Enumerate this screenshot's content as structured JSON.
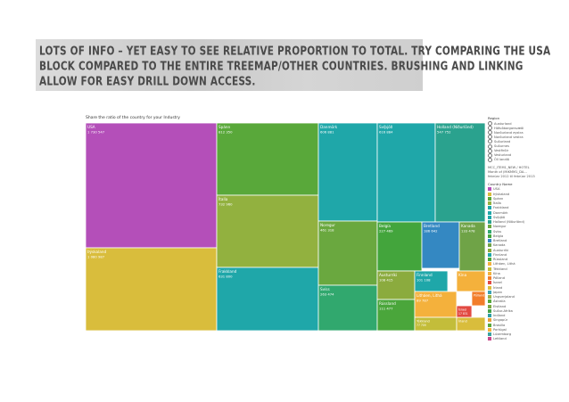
{
  "banner": {
    "lines": [
      "Lots of info – yet easy to see relative proportion to total.  Try comparing the USA",
      "block compared to the entire treemap/other countries. Brushing and linking",
      "allow for easy drill down access."
    ]
  },
  "chart_title": "Share the ratio of the country for your Industry",
  "chart_data": {
    "type": "treemap",
    "tiles": [
      {
        "name": "USA",
        "value": "1 730 547",
        "color": "#b44fb9"
      },
      {
        "name": "Þýskaland",
        "value": "1 080 987",
        "color": "#d9bd3c"
      },
      {
        "name": "Spánn",
        "value": "812 350",
        "color": "#59a83a"
      },
      {
        "name": "Ítalía",
        "value": "732 960",
        "color": "#92b13f"
      },
      {
        "name": "Frakkland",
        "value": "631 800",
        "color": "#1fa7a9"
      },
      {
        "name": "Danmörk",
        "value": "606 881",
        "color": "#1fa7a9"
      },
      {
        "name": "Noregur",
        "value": "461 318",
        "color": "#6aa83f"
      },
      {
        "name": "Svíss",
        "value": "263 474",
        "color": "#31a86e"
      },
      {
        "name": "Svíþjóð",
        "value": "616 884",
        "color": "#1fa7a9"
      },
      {
        "name": "Holland (Niðurlönd)",
        "value": "547 752",
        "color": "#2aa28e"
      },
      {
        "name": "Belgía",
        "value": "227 469",
        "color": "#43a53c"
      },
      {
        "name": "Bretland",
        "value": "186 642",
        "color": "#3488c2"
      },
      {
        "name": "Kanada",
        "value": "133 478",
        "color": "#6fa347"
      },
      {
        "name": "Austurríki",
        "value": "108 415",
        "color": "#8bab3e"
      },
      {
        "name": "Finnland",
        "value": "101 108",
        "color": "#1fa7a9"
      },
      {
        "name": "Rússland",
        "value": "111 477",
        "color": "#4aa63b"
      },
      {
        "name": "Litháen, Lithá",
        "value": "89 787",
        "color": "#f4b13c"
      },
      {
        "name": "Tékkland",
        "value": "77 709",
        "color": "#c3bd3a"
      },
      {
        "name": "Kína",
        "value": "",
        "color": "#f4b13c"
      },
      {
        "name": "Írland",
        "value": "",
        "color": "#d9bd3c"
      },
      {
        "name": "Pólland",
        "value": "",
        "color": "#f27d2a"
      },
      {
        "name": "Ísrael",
        "value": "17 831",
        "color": "#e24a42"
      }
    ]
  },
  "legend": {
    "region_title": "Region",
    "regions": [
      "Austurland",
      "Höfuðborgarsvæði",
      "Norðurland eystra",
      "Norðurland vestra",
      "Suðurland",
      "Suðurnes",
      "Vestfirðir",
      "Vesturland",
      "Öll landið"
    ],
    "param_title": "MCC_ITEM1_NEW / HOTEL",
    "param2_title": "Month of (MIKMM1_DA...",
    "param2_value": "febrúar 2012 til febrúar 2013",
    "country_title": "Country Name",
    "countries": [
      {
        "name": "USA",
        "color": "#b44fb9"
      },
      {
        "name": "Þýskaland",
        "color": "#d9bd3c"
      },
      {
        "name": "Spánn",
        "color": "#59a83a"
      },
      {
        "name": "Ítalía",
        "color": "#92b13f"
      },
      {
        "name": "Frakkland",
        "color": "#1fa7a9"
      },
      {
        "name": "Danmörk",
        "color": "#1fa7a9"
      },
      {
        "name": "Svíþjóð",
        "color": "#1fa7a9"
      },
      {
        "name": "Holland (Niðurlönd)",
        "color": "#2aa28e"
      },
      {
        "name": "Noregur",
        "color": "#6aa83f"
      },
      {
        "name": "Svíss",
        "color": "#31a86e"
      },
      {
        "name": "Belgía",
        "color": "#43a53c"
      },
      {
        "name": "Bretland",
        "color": "#3488c2"
      },
      {
        "name": "Kanada",
        "color": "#6fa347"
      },
      {
        "name": "Austurríki",
        "color": "#8bab3e"
      },
      {
        "name": "Finnland",
        "color": "#1fa7a9"
      },
      {
        "name": "Rússland",
        "color": "#4aa63b"
      },
      {
        "name": "Litháen, Lithá",
        "color": "#f4b13c"
      },
      {
        "name": "Tékkland",
        "color": "#c3bd3a"
      },
      {
        "name": "Kína",
        "color": "#f4b13c"
      },
      {
        "name": "Pólland",
        "color": "#f27d2a"
      },
      {
        "name": "Ísrael",
        "color": "#e24a42"
      },
      {
        "name": "Írland",
        "color": "#d9bd3c"
      },
      {
        "name": "Japan",
        "color": "#3aa3b4"
      },
      {
        "name": "Ungverjaland",
        "color": "#9bb24a"
      },
      {
        "name": "Ástralía",
        "color": "#56a83c"
      },
      {
        "name": "Eistland",
        "color": "#7aa941"
      },
      {
        "name": "Suður-Afríka",
        "color": "#45a34b"
      },
      {
        "name": "Indland",
        "color": "#2e9fa4"
      },
      {
        "name": "Singapúr",
        "color": "#e6a03a"
      },
      {
        "name": "Brasilía",
        "color": "#5aa83c"
      },
      {
        "name": "Portúgal",
        "color": "#f4b13c"
      },
      {
        "name": "Lúxemborg",
        "color": "#3aa2a0"
      },
      {
        "name": "Lettland",
        "color": "#c94a8c"
      }
    ]
  }
}
